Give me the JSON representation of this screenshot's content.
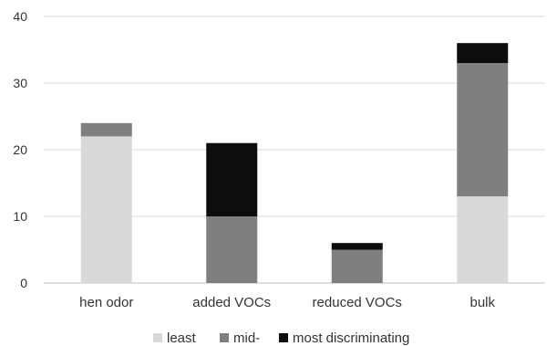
{
  "chart_data": {
    "type": "bar",
    "stacked": true,
    "categories": [
      "hen odor",
      "added VOCs",
      "reduced VOCs",
      "bulk"
    ],
    "series": [
      {
        "name": "least",
        "values": [
          22,
          0,
          0,
          13
        ],
        "color": "#d9d9d9"
      },
      {
        "name": "mid-",
        "values": [
          2,
          10,
          5,
          20
        ],
        "color": "#7f7f7f"
      },
      {
        "name": "most discriminating",
        "values": [
          0,
          11,
          1,
          3
        ],
        "color": "#0d0d0d"
      }
    ],
    "ylim": [
      0,
      40
    ],
    "yticks": [
      0,
      10,
      20,
      30,
      40
    ],
    "grid": true,
    "legend_position": "bottom",
    "title": "",
    "xlabel": "",
    "ylabel": ""
  }
}
